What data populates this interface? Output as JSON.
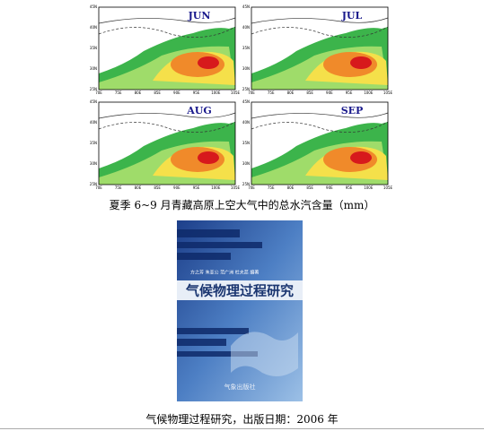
{
  "figure": {
    "panels": [
      {
        "label": "JUN"
      },
      {
        "label": "JUL"
      },
      {
        "label": "AUG"
      },
      {
        "label": "SEP"
      }
    ],
    "lat_labels": [
      "45N",
      "40N",
      "35N",
      "30N",
      "25N"
    ],
    "lon_labels": [
      "70E",
      "75E",
      "80E",
      "85E",
      "90E",
      "95E",
      "100E",
      "105E"
    ],
    "caption": "夏季 6~9 月青藏高原上空大气中的总水汽含量（mm）"
  },
  "book": {
    "authors": "方之芳  朱亚公  范广洲  杜夫蕊  编著",
    "title": "气候物理过程研究",
    "publisher": "气象出版社",
    "caption": "气候物理过程研究，出版日期：2006 年"
  }
}
